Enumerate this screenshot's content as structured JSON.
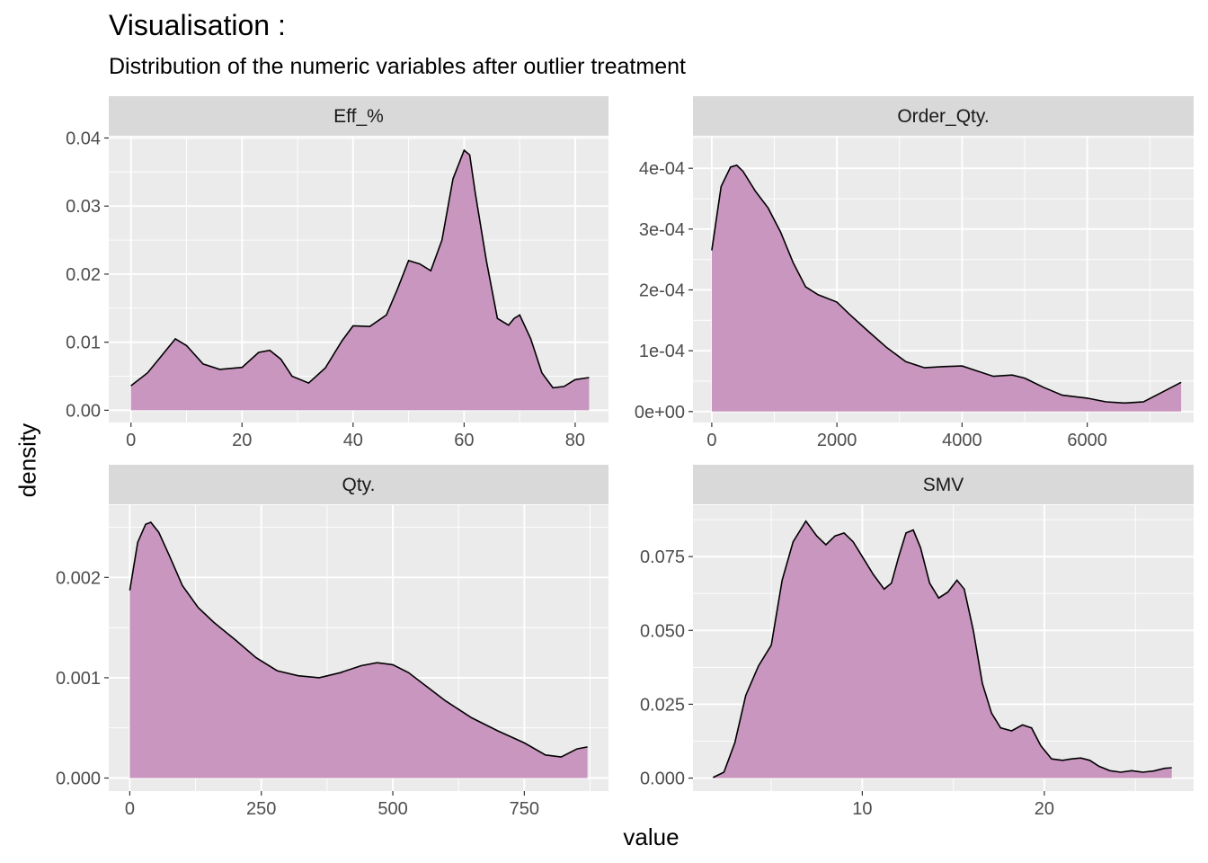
{
  "title": "Visualisation :",
  "subtitle": "Distribution of the numeric variables after outlier treatment",
  "colors": {
    "fill": "#c896be",
    "line": "#000000",
    "panel": "#ebebeb",
    "strip": "#d9d9d9",
    "grid": "#ffffff"
  },
  "chart_data": {
    "type": "area",
    "xlabel": "value",
    "ylabel": "density",
    "grid": true,
    "facets": [
      {
        "name": "Eff_%",
        "xlim": [
          -4,
          86
        ],
        "ylim": [
          -0.0018,
          0.0402
        ],
        "xticks": [
          0,
          20,
          40,
          60,
          80
        ],
        "yticks": [
          0,
          0.01,
          0.02,
          0.03,
          0.04
        ],
        "ytick_labels": [
          "0.00",
          "0.01",
          "0.02",
          "0.03",
          "0.04"
        ],
        "x": [
          0,
          3,
          5,
          8,
          10,
          13,
          16,
          20,
          23,
          25,
          27,
          29,
          32,
          35,
          38,
          40,
          43,
          46,
          48,
          50,
          52,
          54,
          56,
          58,
          60,
          61,
          62,
          64,
          66,
          68,
          69,
          70,
          72,
          74,
          76,
          78,
          80,
          82.5
        ],
        "y": [
          0.0036,
          0.0055,
          0.0075,
          0.0105,
          0.0095,
          0.0068,
          0.006,
          0.0063,
          0.0085,
          0.0088,
          0.0075,
          0.005,
          0.004,
          0.0062,
          0.0102,
          0.0124,
          0.0123,
          0.014,
          0.0178,
          0.022,
          0.0215,
          0.0205,
          0.025,
          0.034,
          0.0382,
          0.0375,
          0.032,
          0.022,
          0.0135,
          0.0125,
          0.0135,
          0.014,
          0.0105,
          0.0055,
          0.0033,
          0.0035,
          0.0045,
          0.0048
        ]
      },
      {
        "name": "Order_Qty.",
        "xlim": [
          -300,
          7700
        ],
        "ylim": [
          -1.8e-05,
          0.000452
        ],
        "xticks": [
          0,
          2000,
          4000,
          6000
        ],
        "yticks": [
          0,
          0.0001,
          0.0002,
          0.0003,
          0.0004
        ],
        "ytick_labels": [
          "0e+00",
          "1e-04",
          "2e-04",
          "3e-04",
          "4e-04"
        ],
        "x": [
          0,
          150,
          300,
          400,
          500,
          700,
          900,
          1100,
          1300,
          1500,
          1700,
          2000,
          2200,
          2500,
          2800,
          3100,
          3400,
          3700,
          4000,
          4200,
          4500,
          4800,
          5000,
          5300,
          5600,
          6000,
          6300,
          6600,
          6900,
          7200,
          7500
        ],
        "y": [
          0.000265,
          0.00037,
          0.000402,
          0.000405,
          0.000395,
          0.000362,
          0.000335,
          0.000295,
          0.000245,
          0.000205,
          0.000192,
          0.00018,
          0.00016,
          0.000132,
          0.000105,
          8.2e-05,
          7.2e-05,
          7.4e-05,
          7.5e-05,
          6.8e-05,
          5.8e-05,
          6e-05,
          5.5e-05,
          4e-05,
          2.7e-05,
          2.2e-05,
          1.6e-05,
          1.4e-05,
          1.6e-05,
          3.2e-05,
          4.8e-05
        ]
      },
      {
        "name": "Qty.",
        "xlim": [
          -40,
          910
        ],
        "ylim": [
          -0.00013,
          0.00272
        ],
        "xticks": [
          0,
          250,
          500,
          750
        ],
        "yticks": [
          0,
          0.001,
          0.002
        ],
        "ytick_labels": [
          "0.000",
          "0.001",
          "0.002"
        ],
        "x": [
          0,
          15,
          30,
          40,
          55,
          75,
          100,
          130,
          160,
          200,
          240,
          280,
          320,
          360,
          400,
          440,
          470,
          500,
          530,
          560,
          600,
          650,
          700,
          750,
          790,
          820,
          850,
          870
        ],
        "y": [
          0.00187,
          0.00235,
          0.00253,
          0.00255,
          0.00245,
          0.00222,
          0.00192,
          0.0017,
          0.00155,
          0.00138,
          0.0012,
          0.00107,
          0.00102,
          0.001,
          0.00105,
          0.00112,
          0.00115,
          0.00113,
          0.00105,
          0.00093,
          0.00077,
          0.0006,
          0.00047,
          0.00035,
          0.00023,
          0.00021,
          0.00029,
          0.00031
        ]
      },
      {
        "name": "SMV",
        "xlim": [
          0.7,
          28.2
        ],
        "ylim": [
          -0.0044,
          0.0924
        ],
        "xticks": [
          10,
          20
        ],
        "yticks": [
          0,
          0.025,
          0.05,
          0.075
        ],
        "ytick_labels": [
          "0.000",
          "0.025",
          "0.050",
          "0.075"
        ],
        "x": [
          1.8,
          2.4,
          3,
          3.6,
          4.3,
          5,
          5.6,
          6.2,
          6.9,
          7.5,
          8,
          8.5,
          9,
          9.5,
          10,
          10.6,
          11.2,
          11.6,
          12,
          12.4,
          12.8,
          13.2,
          13.7,
          14.2,
          14.7,
          15.2,
          15.6,
          16.1,
          16.6,
          17.1,
          17.6,
          18.2,
          18.8,
          19.3,
          19.8,
          20.4,
          21,
          21.5,
          22,
          22.5,
          23,
          23.6,
          24.2,
          24.8,
          25.4,
          26,
          26.6,
          27
        ],
        "y": [
          0.0002,
          0.002,
          0.012,
          0.028,
          0.038,
          0.045,
          0.067,
          0.08,
          0.087,
          0.082,
          0.079,
          0.082,
          0.083,
          0.08,
          0.075,
          0.069,
          0.064,
          0.066,
          0.075,
          0.083,
          0.084,
          0.078,
          0.066,
          0.061,
          0.063,
          0.067,
          0.064,
          0.05,
          0.032,
          0.022,
          0.017,
          0.016,
          0.018,
          0.017,
          0.011,
          0.0065,
          0.006,
          0.0065,
          0.0068,
          0.006,
          0.004,
          0.0025,
          0.002,
          0.0025,
          0.002,
          0.0024,
          0.0033,
          0.0035
        ]
      }
    ]
  }
}
